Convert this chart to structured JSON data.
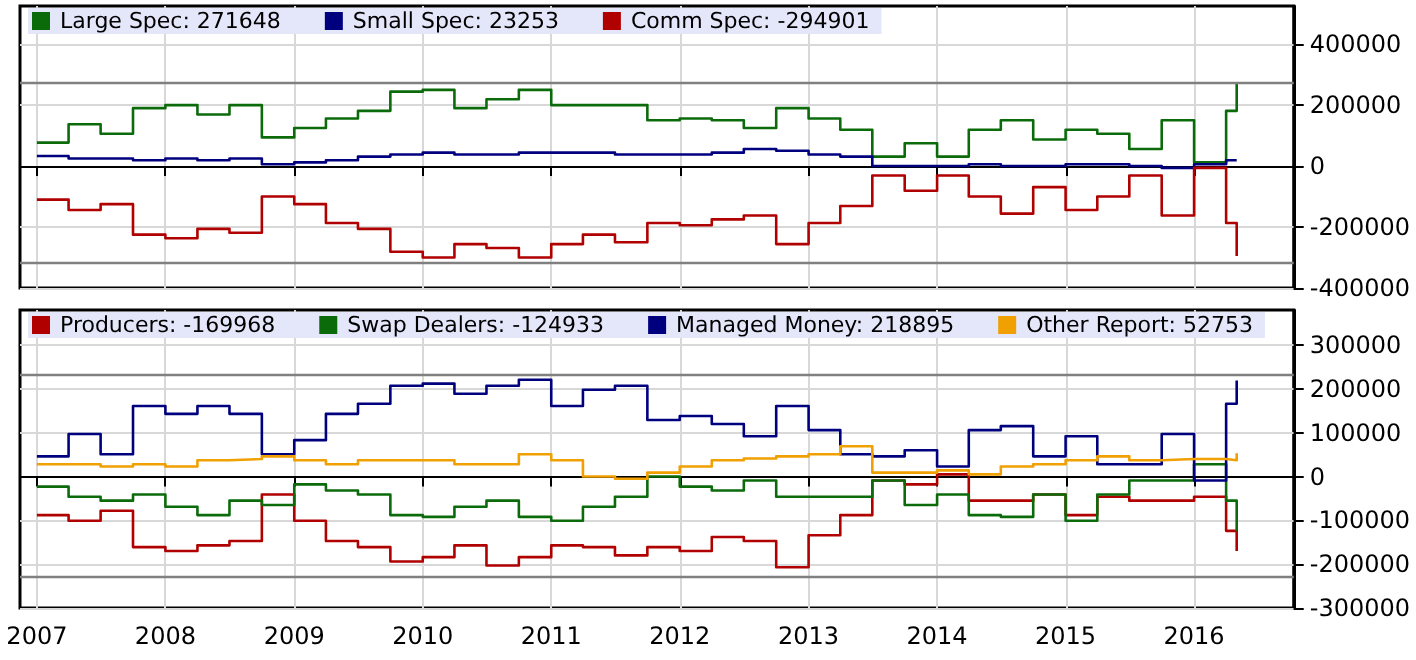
{
  "chart_data": [
    {
      "type": "step",
      "x": [
        "2007-01",
        "2007-04",
        "2007-07",
        "2007-10",
        "2008-01",
        "2008-04",
        "2008-07",
        "2008-10",
        "2009-01",
        "2009-04",
        "2009-07",
        "2009-10",
        "2010-01",
        "2010-04",
        "2010-07",
        "2010-10",
        "2011-01",
        "2011-04",
        "2011-07",
        "2011-10",
        "2012-01",
        "2012-04",
        "2012-07",
        "2012-10",
        "2013-01",
        "2013-04",
        "2013-07",
        "2013-10",
        "2014-01",
        "2014-04",
        "2014-07",
        "2014-10",
        "2015-01",
        "2015-04",
        "2015-07",
        "2015-10",
        "2016-01",
        "2016-04",
        "2016-05"
      ],
      "series": [
        {
          "name": "Large Spec: 271648",
          "color": "#0b6b0b",
          "values": [
            77000,
            137000,
            106000,
            190000,
            200000,
            169000,
            200000,
            94000,
            125000,
            156000,
            181000,
            244000,
            250000,
            190000,
            219000,
            250000,
            200000,
            200000,
            200000,
            150000,
            156000,
            150000,
            125000,
            190000,
            156000,
            119000,
            31000,
            75000,
            31000,
            119000,
            150000,
            87000,
            119000,
            106000,
            56000,
            150000,
            12000,
            181000,
            272000
          ]
        },
        {
          "name": "Small Spec: 23253",
          "color": "#00007f",
          "values": [
            33000,
            25000,
            25000,
            19000,
            25000,
            19000,
            25000,
            6000,
            12000,
            19000,
            31000,
            38000,
            44000,
            38000,
            38000,
            44000,
            44000,
            44000,
            38000,
            38000,
            38000,
            44000,
            56000,
            50000,
            38000,
            31000,
            0,
            0,
            0,
            6000,
            0,
            0,
            6000,
            6000,
            0,
            -6000,
            6000,
            19000,
            23000
          ]
        },
        {
          "name": "Comm Spec: -294901",
          "color": "#b00000",
          "values": [
            -110000,
            -144000,
            -125000,
            -225000,
            -237000,
            -206000,
            -219000,
            -100000,
            -125000,
            -187000,
            -206000,
            -281000,
            -300000,
            -256000,
            -269000,
            -300000,
            -256000,
            -225000,
            -250000,
            -187000,
            -194000,
            -175000,
            -162000,
            -256000,
            -187000,
            -131000,
            -31000,
            -81000,
            -31000,
            -100000,
            -156000,
            -69000,
            -144000,
            -100000,
            -31000,
            -162000,
            -6000,
            -187000,
            -295000
          ]
        }
      ],
      "xlim": [
        "2006-11-14",
        "2016-10-10"
      ],
      "xticks": [
        "2007",
        "2008",
        "2009",
        "2010",
        "2011",
        "2012",
        "2013",
        "2014",
        "2015",
        "2016"
      ],
      "ylim": [
        -400000,
        525000
      ],
      "yticks": [
        -400000,
        -200000,
        0,
        200000,
        400000
      ],
      "ref_lines": [
        {
          "axis": "y",
          "value": 273000,
          "color": "#808080"
        },
        {
          "axis": "y",
          "value": -319000,
          "color": "#808080"
        }
      ],
      "grid": true,
      "legend": "top left",
      "marker": "none",
      "tick_labels": "y"
    },
    {
      "type": "step",
      "x": [
        "2007-01",
        "2007-04",
        "2007-07",
        "2007-10",
        "2008-01",
        "2008-04",
        "2008-07",
        "2008-10",
        "2009-01",
        "2009-04",
        "2009-07",
        "2009-10",
        "2010-01",
        "2010-04",
        "2010-07",
        "2010-10",
        "2011-01",
        "2011-04",
        "2011-07",
        "2011-10",
        "2012-01",
        "2012-04",
        "2012-07",
        "2012-10",
        "2013-01",
        "2013-04",
        "2013-07",
        "2013-10",
        "2014-01",
        "2014-04",
        "2014-07",
        "2014-10",
        "2015-01",
        "2015-04",
        "2015-07",
        "2015-10",
        "2016-01",
        "2016-04",
        "2016-05"
      ],
      "series": [
        {
          "name": "Producers: -169968",
          "color": "#b00000",
          "values": [
            -88000,
            -101000,
            -78000,
            -161000,
            -170000,
            -157000,
            -147000,
            -41000,
            -101000,
            -147000,
            -161000,
            -194000,
            -184000,
            -157000,
            -203000,
            -184000,
            -157000,
            -161000,
            -180000,
            -161000,
            -170000,
            -138000,
            -147000,
            -207000,
            -134000,
            -88000,
            -9000,
            -18000,
            5000,
            -55000,
            -55000,
            -41000,
            -88000,
            -46000,
            -55000,
            -55000,
            -46000,
            -124000,
            -170000
          ]
        },
        {
          "name": "Swap Dealers: -124933",
          "color": "#0b6b0b",
          "values": [
            -23000,
            -46000,
            -55000,
            -41000,
            -69000,
            -88000,
            -55000,
            -65000,
            -18000,
            -32000,
            -41000,
            -88000,
            -92000,
            -69000,
            -55000,
            -92000,
            -101000,
            -69000,
            -46000,
            0,
            -23000,
            -32000,
            -9000,
            -46000,
            -46000,
            -46000,
            -9000,
            -65000,
            -41000,
            -88000,
            -92000,
            -41000,
            -101000,
            -41000,
            -9000,
            -9000,
            28000,
            -55000,
            -125000
          ]
        },
        {
          "name": "Managed Money: 218895",
          "color": "#00007f",
          "values": [
            46000,
            97000,
            51000,
            161000,
            143000,
            161000,
            143000,
            51000,
            83000,
            143000,
            166000,
            207000,
            212000,
            189000,
            207000,
            221000,
            161000,
            198000,
            207000,
            129000,
            138000,
            120000,
            92000,
            161000,
            106000,
            51000,
            46000,
            60000,
            23000,
            106000,
            115000,
            46000,
            92000,
            28000,
            28000,
            97000,
            -9000,
            166000,
            219000
          ]
        },
        {
          "name": "Other Report: 52753",
          "color": "#f0a000",
          "values": [
            28000,
            28000,
            23000,
            28000,
            23000,
            37000,
            40000,
            46000,
            37000,
            28000,
            37000,
            37000,
            37000,
            28000,
            28000,
            51000,
            37000,
            0,
            -5000,
            9000,
            23000,
            37000,
            41000,
            46000,
            51000,
            69000,
            9000,
            9000,
            14000,
            5000,
            23000,
            28000,
            37000,
            46000,
            37000,
            40000,
            40000,
            37000,
            53000
          ]
        }
      ],
      "xlim": [
        "2006-11-14",
        "2016-10-10"
      ],
      "xticks": [
        "2007",
        "2008",
        "2009",
        "2010",
        "2011",
        "2012",
        "2013",
        "2014",
        "2015",
        "2016"
      ],
      "ylim": [
        -300000,
        380000
      ],
      "yticks": [
        -300000,
        -200000,
        -100000,
        0,
        100000,
        200000,
        300000
      ],
      "ref_lines": [
        {
          "axis": "y",
          "value": 232000,
          "color": "#808080"
        },
        {
          "axis": "y",
          "value": -227000,
          "color": "#808080"
        }
      ],
      "grid": true,
      "legend": "top left",
      "marker": "none"
    }
  ]
}
